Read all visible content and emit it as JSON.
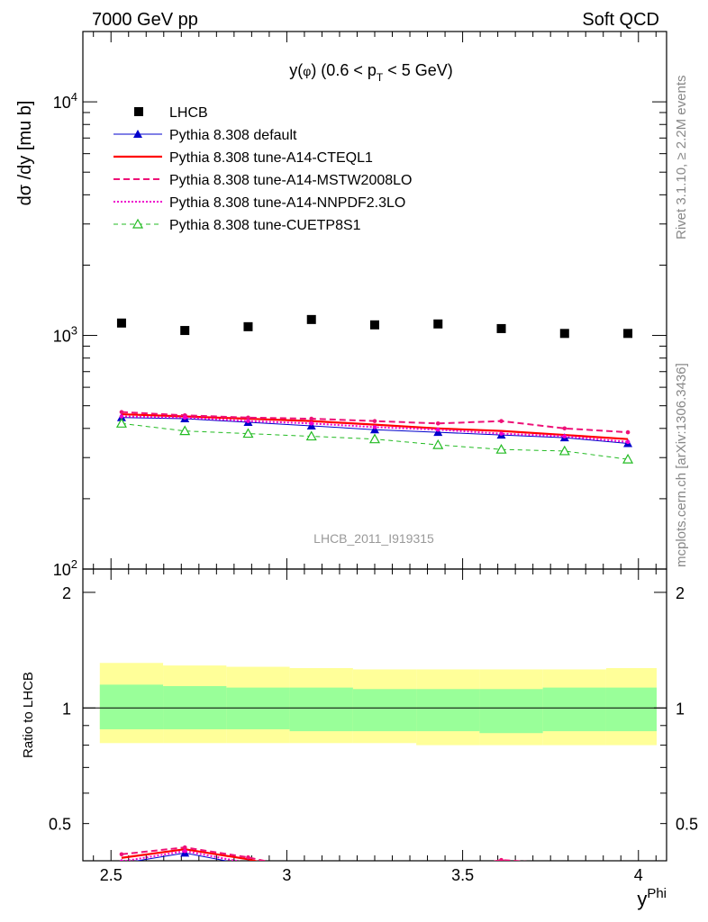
{
  "header": {
    "left": "7000 GeV pp",
    "right": "Soft QCD"
  },
  "side_labels": {
    "rivet": "Rivet 3.1.10, ≥ 2.2M events",
    "mcplots": "mcplots.cern.ch [arXiv:1306.3436]"
  },
  "chart_data": {
    "type": "line",
    "title": "y(φ) (0.6 < p_T < 5 GeV)",
    "analysis_id": "LHCB_2011_I919315",
    "xlabel": "y^Phi",
    "ylabel": "dσ /dy [mu b]",
    "ratio_ylabel": "Ratio to LHCB",
    "xlim": [
      2.42,
      4.08
    ],
    "ylim": [
      100,
      20000
    ],
    "yscale": "log",
    "ratio_ylim": [
      0.4,
      2.3
    ],
    "x_ticks": [
      "2.5",
      "3",
      "3.5",
      "4"
    ],
    "y_tick_labels": [
      {
        "value": 100,
        "base": "10",
        "exp": "2"
      },
      {
        "value": 1000,
        "base": "10",
        "exp": "3"
      },
      {
        "value": 10000,
        "base": "10",
        "exp": "4"
      }
    ],
    "ratio_ticks": [
      "0.5",
      "1",
      "2"
    ],
    "legend_position": "top-left",
    "x": [
      2.53,
      2.71,
      2.89,
      3.07,
      3.25,
      3.43,
      3.61,
      3.79,
      3.97
    ],
    "bin_edges": [
      2.44,
      2.62,
      2.8,
      2.98,
      3.16,
      3.34,
      3.52,
      3.7,
      3.88,
      4.06
    ],
    "reference": {
      "name": "LHCB",
      "values": [
        1130,
        1050,
        1090,
        1170,
        1110,
        1120,
        1070,
        1020,
        1020
      ]
    },
    "ratio_band_1sigma": [
      [
        0.88,
        1.15
      ],
      [
        0.88,
        1.14
      ],
      [
        0.88,
        1.13
      ],
      [
        0.87,
        1.13
      ],
      [
        0.87,
        1.12
      ],
      [
        0.87,
        1.12
      ],
      [
        0.86,
        1.12
      ],
      [
        0.87,
        1.13
      ],
      [
        0.87,
        1.13
      ]
    ],
    "ratio_band_2sigma": [
      [
        0.81,
        1.31
      ],
      [
        0.81,
        1.29
      ],
      [
        0.81,
        1.28
      ],
      [
        0.81,
        1.27
      ],
      [
        0.81,
        1.26
      ],
      [
        0.8,
        1.26
      ],
      [
        0.8,
        1.26
      ],
      [
        0.8,
        1.26
      ],
      [
        0.8,
        1.27
      ]
    ],
    "series": [
      {
        "name": "Pythia 8.308 default",
        "color": "#0000cc",
        "dash": "",
        "marker": "triangle-filled",
        "width": 1,
        "values": [
          445,
          440,
          425,
          410,
          395,
          385,
          375,
          365,
          345
        ]
      },
      {
        "name": "Pythia 8.308 tune-A14-CTEQL1",
        "color": "#ff0000",
        "dash": "",
        "marker": "none",
        "width": 2.2,
        "values": [
          460,
          450,
          440,
          430,
          415,
          400,
          390,
          375,
          360
        ]
      },
      {
        "name": "Pythia 8.308 tune-A14-MSTW2008LO",
        "color": "#ee1177",
        "dash": "7,4",
        "marker": "dot",
        "width": 2,
        "values": [
          470,
          455,
          445,
          440,
          430,
          420,
          430,
          400,
          385
        ]
      },
      {
        "name": "Pythia 8.308 tune-A14-NNPDF2.3LO",
        "color": "#ee00cc",
        "dash": "2,2",
        "marker": "dot",
        "width": 2,
        "values": [
          450,
          445,
          430,
          420,
          405,
          395,
          380,
          370,
          350
        ]
      },
      {
        "name": "Pythia 8.308 tune-CUETP8S1",
        "color": "#22bb22",
        "dash": "5,4",
        "marker": "triangle-open",
        "width": 1,
        "values": [
          420,
          390,
          380,
          370,
          360,
          340,
          325,
          320,
          295
        ]
      }
    ]
  }
}
